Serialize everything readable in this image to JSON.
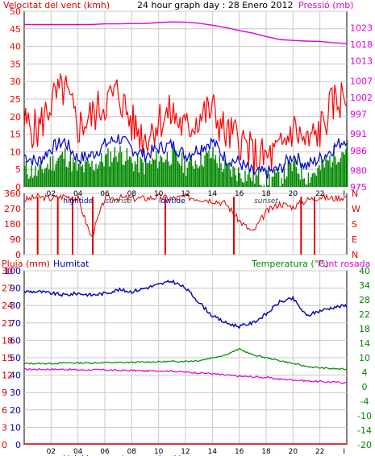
{
  "header": {
    "left": "Velocitat del vent (kmh)",
    "center": "24 hour graph day : 28 Enero 2012",
    "right": "Pressió (mb)"
  },
  "colors": {
    "wind": "#ff0000",
    "avg_wind": "#0000cc",
    "dir": "#dd0000",
    "pressure": "#dd00dd",
    "humidity": "#0000aa",
    "temperature": "#008800",
    "dewpoint": "#dd00dd",
    "rain": "#dd0000",
    "grid": "#c8c8c8",
    "frame": "#000000",
    "green_fill": "#008800"
  },
  "time_axis": {
    "labels": [
      "02",
      "04",
      "06",
      "08",
      "10",
      "12",
      "14",
      "16",
      "18",
      "20",
      "22",
      "I"
    ],
    "events": [
      {
        "label": "hightide",
        "at": "04"
      },
      {
        "label": "sunrise",
        "at": "07"
      },
      {
        "label": "lowtide",
        "at": "11"
      },
      {
        "label": "sunset",
        "at": "18"
      }
    ]
  },
  "chart_data": [
    {
      "type": "line",
      "title": "24 hour graph day : 28 Enero 2012",
      "ylabel": "Velocitat del vent (kmh)",
      "y2label": "Pressió (mb)",
      "ylim": [
        0,
        50
      ],
      "y2lim": [
        975,
        1028
      ],
      "yticks": [
        0,
        5,
        10,
        15,
        20,
        25,
        30,
        35,
        40,
        45,
        50
      ],
      "y2ticks": [
        975,
        980,
        986,
        991,
        997,
        1002,
        1007,
        1013,
        1018,
        1023
      ],
      "x": [
        0,
        1,
        2,
        3,
        4,
        5,
        6,
        7,
        8,
        9,
        10,
        11,
        12,
        13,
        14,
        15,
        16,
        17,
        18,
        19,
        20,
        21,
        22,
        23,
        24
      ],
      "series": [
        {
          "name": "gust",
          "values": [
            18,
            16,
            24,
            28,
            17,
            20,
            24,
            27,
            18,
            14,
            19,
            21,
            16,
            20,
            22,
            15,
            14,
            9,
            8,
            10,
            17,
            12,
            16,
            24,
            26
          ]
        },
        {
          "name": "average",
          "values": [
            9,
            7,
            11,
            13,
            8,
            9,
            12,
            14,
            11,
            9,
            11,
            12,
            9,
            11,
            13,
            8,
            7,
            4,
            4,
            5,
            9,
            6,
            8,
            11,
            14
          ]
        },
        {
          "name": "speed",
          "values": [
            5,
            4,
            7,
            9,
            5,
            6,
            8,
            10,
            7,
            6,
            8,
            9,
            6,
            8,
            9,
            5,
            4,
            3,
            2,
            3,
            6,
            3,
            5,
            9,
            11
          ]
        },
        {
          "name": "pressure",
          "values": [
            1024,
            1024,
            1024,
            1024,
            1024,
            1024,
            1024.2,
            1024.2,
            1024.3,
            1024.3,
            1024.6,
            1024.8,
            1024.7,
            1024.4,
            1023.8,
            1023.1,
            1022.2,
            1021.4,
            1020.4,
            1019.5,
            1019.2,
            1019.0,
            1018.9,
            1018.5,
            1018.3
          ]
        }
      ]
    },
    {
      "type": "line",
      "ylabel": "",
      "yticks": [
        "360",
        "270",
        "180",
        "90",
        "0"
      ],
      "y2ticks": [
        "N",
        "W",
        "S",
        "E",
        "N"
      ],
      "ylim": [
        0,
        360
      ],
      "x": [
        0,
        1,
        2,
        3,
        4,
        5,
        6,
        7,
        8,
        9,
        10,
        11,
        12,
        13,
        14,
        15,
        16,
        17,
        18,
        19,
        20,
        21,
        22,
        23,
        24
      ],
      "series": [
        {
          "name": "direction",
          "values": [
            320,
            340,
            330,
            345,
            330,
            100,
            330,
            335,
            330,
            330,
            340,
            330,
            340,
            330,
            320,
            300,
            200,
            130,
            250,
            300,
            280,
            320,
            340,
            330,
            340
          ]
        }
      ]
    },
    {
      "type": "line",
      "ylabel": "Pluja (mm)",
      "y2label": "Temperatura (°C)",
      "legend": [
        "Humitat",
        "Temperatura (°C)",
        "Punt rosada"
      ],
      "ylim": [
        0,
        30
      ],
      "y2lim": [
        -20,
        40
      ],
      "yticks_left_outer": [
        "0",
        "3",
        "6",
        "9",
        "12",
        "15",
        "18",
        "21",
        "24",
        "27",
        "30"
      ],
      "yticks_left_inner": [
        "0",
        "10",
        "20",
        "30",
        "40",
        "50",
        "60",
        "70",
        "80",
        "90",
        "100"
      ],
      "y2ticks": [
        "-20",
        "-14",
        "-10",
        "-4",
        "0",
        "4",
        "10",
        "14",
        "18",
        "22",
        "28",
        "34",
        "40"
      ],
      "x": [
        0,
        1,
        2,
        3,
        4,
        5,
        6,
        7,
        8,
        9,
        10,
        11,
        12,
        13,
        14,
        15,
        16,
        17,
        18,
        19,
        20,
        21,
        22,
        23,
        24
      ],
      "series": [
        {
          "name": "Humitat",
          "values": [
            88,
            88,
            87,
            86,
            87,
            86,
            87,
            89,
            88,
            90,
            92,
            94,
            90,
            82,
            74,
            70,
            68,
            70,
            75,
            82,
            84,
            74,
            77,
            79,
            80
          ]
        },
        {
          "name": "Temperatura (°C)",
          "values": [
            8,
            8,
            8,
            8.2,
            8.2,
            8.2,
            8.3,
            8.3,
            8.4,
            8.5,
            8.6,
            8.7,
            8.8,
            9,
            10,
            11,
            13,
            11,
            10,
            9,
            8,
            7,
            6.5,
            6.2,
            6
          ]
        },
        {
          "name": "Punt rosada",
          "values": [
            6,
            6,
            6,
            6,
            5.8,
            5.8,
            5.8,
            5.6,
            5.6,
            5.4,
            5.5,
            5.4,
            5,
            4.8,
            4.5,
            4,
            3.6,
            3.4,
            3.2,
            2.6,
            2.4,
            2,
            1.8,
            1.6,
            1.4
          ]
        },
        {
          "name": "Pluja (mm)",
          "values": [
            0,
            0,
            0,
            0,
            0,
            0,
            0,
            0,
            0,
            0,
            0,
            0,
            0,
            0,
            0,
            0,
            0,
            0,
            0,
            0,
            0,
            0,
            0,
            0,
            0
          ]
        }
      ]
    }
  ]
}
